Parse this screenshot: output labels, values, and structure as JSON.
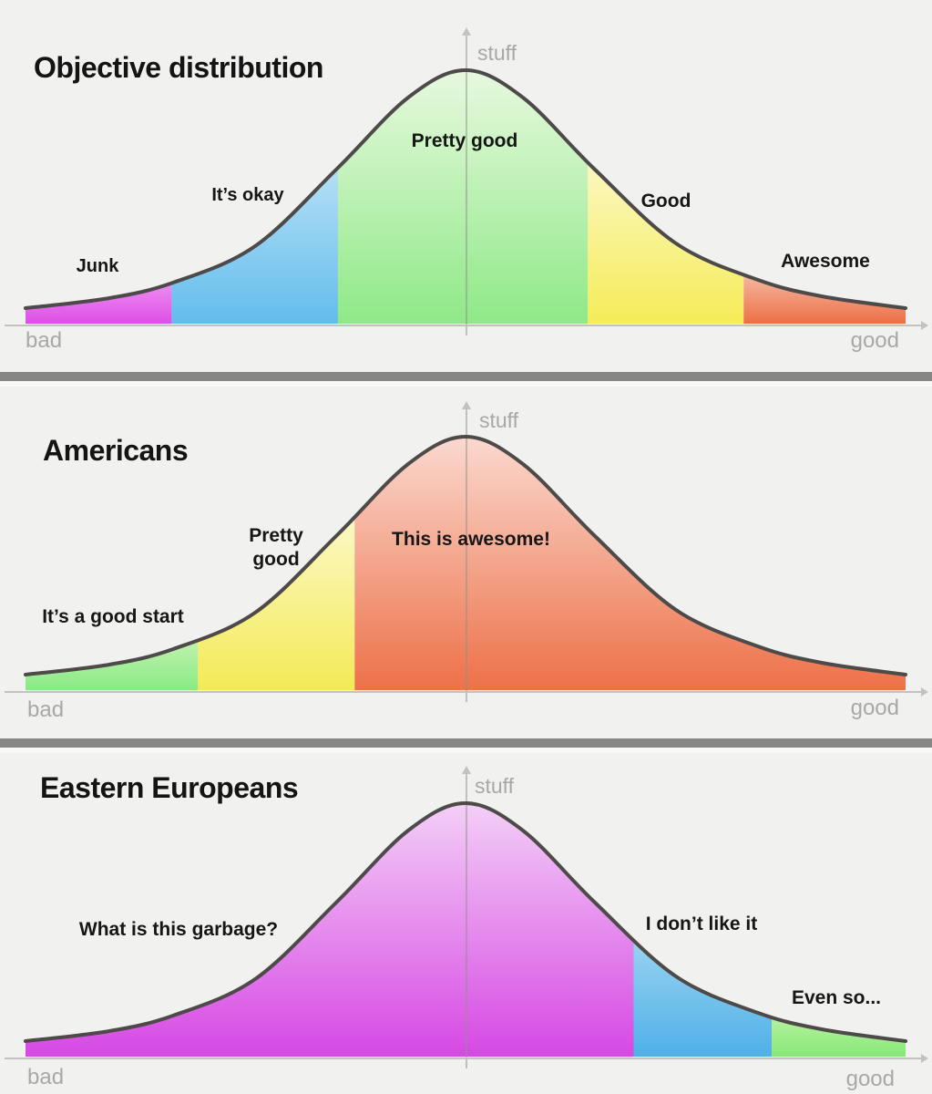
{
  "meta": {
    "background_color": "#f1f1ef",
    "divider_color": "#868684",
    "curve_color": "#4d4a49",
    "axis_color": "#c2c2be",
    "muted_text_color": "#a8a8a5",
    "label_text_color": "#161616"
  },
  "chart_data": [
    {
      "type": "area",
      "curve": "bell",
      "title": "Objective distribution",
      "ylabel": "stuff",
      "x_axis_left": "bad",
      "x_axis_right": "good",
      "legend_position": "none",
      "grid": false,
      "segments": [
        {
          "label": "Junk",
          "x_start": 0.0,
          "x_end": 0.166,
          "color_top": "#f095f2",
          "color_bottom": "#dd4fe6"
        },
        {
          "label": "It’s okay",
          "x_start": 0.166,
          "x_end": 0.355,
          "color_top": "#b9e0f6",
          "color_bottom": "#62bdec"
        },
        {
          "label": "Pretty good",
          "x_start": 0.355,
          "x_end": 0.639,
          "color_top": "#e9f9e0",
          "color_bottom": "#8fe987"
        },
        {
          "label": "Good",
          "x_start": 0.639,
          "x_end": 0.816,
          "color_top": "#fbf8c4",
          "color_bottom": "#f5ec58"
        },
        {
          "label": "Awesome",
          "x_start": 0.816,
          "x_end": 1.0,
          "color_top": "#f6c3ae",
          "color_bottom": "#ec6f45"
        }
      ]
    },
    {
      "type": "area",
      "curve": "bell",
      "title": "Americans",
      "ylabel": "stuff",
      "x_axis_left": "bad",
      "x_axis_right": "good",
      "legend_position": "none",
      "grid": false,
      "segments": [
        {
          "label": "It’s a good start",
          "x_start": 0.0,
          "x_end": 0.196,
          "color_top": "#c9f3b6",
          "color_bottom": "#8aea84"
        },
        {
          "label": "Pretty good",
          "x_start": 0.196,
          "x_end": 0.374,
          "color_top": "#fcf9c8",
          "color_bottom": "#f3ea56"
        },
        {
          "label": "This is awesome!",
          "x_start": 0.374,
          "x_end": 1.0,
          "color_top": "#fbdbd2",
          "color_bottom": "#ed7148"
        }
      ]
    },
    {
      "type": "area",
      "curve": "bell",
      "title": "Eastern Europeans",
      "ylabel": "stuff",
      "x_axis_left": "bad",
      "x_axis_right": "good",
      "legend_position": "none",
      "grid": false,
      "segments": [
        {
          "label": "What is this garbage?",
          "x_start": 0.0,
          "x_end": 0.691,
          "color_top": "#f4d2f7",
          "color_bottom": "#d648e4"
        },
        {
          "label": "I don’t like it",
          "x_start": 0.691,
          "x_end": 0.848,
          "color_top": "#9ed6f1",
          "color_bottom": "#4fb0e8"
        },
        {
          "label": "Even so...",
          "x_start": 0.848,
          "x_end": 1.0,
          "color_top": "#c0f3a6",
          "color_bottom": "#86e878"
        }
      ]
    }
  ]
}
